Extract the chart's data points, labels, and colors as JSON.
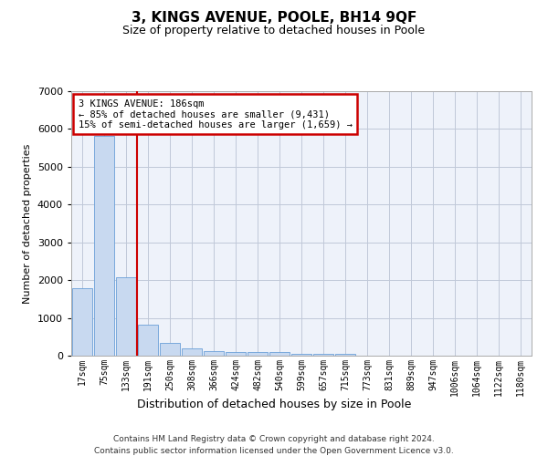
{
  "title": "3, KINGS AVENUE, POOLE, BH14 9QF",
  "subtitle": "Size of property relative to detached houses in Poole",
  "xlabel": "Distribution of detached houses by size in Poole",
  "ylabel": "Number of detached properties",
  "bar_color": "#c8d9f0",
  "bar_edge_color": "#6a9fd8",
  "background_color": "#eef2fa",
  "grid_color": "#c0c8d8",
  "categories": [
    "17sqm",
    "75sqm",
    "133sqm",
    "191sqm",
    "250sqm",
    "308sqm",
    "366sqm",
    "424sqm",
    "482sqm",
    "540sqm",
    "599sqm",
    "657sqm",
    "715sqm",
    "773sqm",
    "831sqm",
    "889sqm",
    "947sqm",
    "1006sqm",
    "1064sqm",
    "1122sqm",
    "1180sqm"
  ],
  "values": [
    1780,
    5820,
    2080,
    810,
    340,
    195,
    120,
    105,
    95,
    85,
    55,
    50,
    55,
    0,
    0,
    0,
    0,
    0,
    0,
    0,
    0
  ],
  "red_line_x": 2.5,
  "annotation_line1": "3 KINGS AVENUE: 186sqm",
  "annotation_line2": "← 85% of detached houses are smaller (9,431)",
  "annotation_line3": "15% of semi-detached houses are larger (1,659) →",
  "annotation_box_color": "#ffffff",
  "annotation_border_color": "#cc0000",
  "ylim": [
    0,
    7000
  ],
  "yticks": [
    0,
    1000,
    2000,
    3000,
    4000,
    5000,
    6000,
    7000
  ],
  "footer_line1": "Contains HM Land Registry data © Crown copyright and database right 2024.",
  "footer_line2": "Contains public sector information licensed under the Open Government Licence v3.0."
}
